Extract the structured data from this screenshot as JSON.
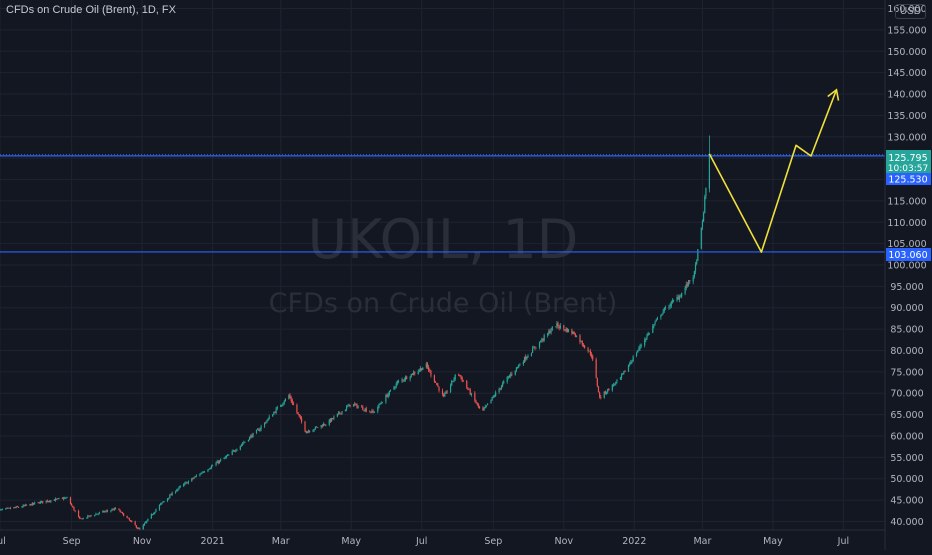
{
  "header": {
    "symbol_line": "CFDs on Crude Oil (Brent), 1D, FX",
    "currency": "USD"
  },
  "watermark": {
    "symbol": "UKOIL, 1D",
    "name": "CFDs on Crude Oil (Brent)"
  },
  "colors": {
    "background": "#131722",
    "grid": "#1f2330",
    "up": "#26a69a",
    "down": "#ef5350",
    "level_line": "#2962ff",
    "drawing": "#f0e03a",
    "current_price_badge": "#26a69a",
    "level_badge": "#2962ff"
  },
  "price_tags": {
    "current": {
      "value": "125.795",
      "countdown": "10:03:57"
    },
    "level1": {
      "value": "125.530"
    },
    "level2": {
      "value": "103.060"
    }
  },
  "chart_data": {
    "type": "candlestick",
    "symbol": "UKOIL",
    "interval": "1D",
    "y_axis": {
      "range": [
        38,
        162
      ],
      "ticks": [
        40,
        45,
        50,
        55,
        60,
        65,
        70,
        75,
        80,
        85,
        90,
        95,
        100,
        105,
        110,
        115,
        120,
        125,
        130,
        135,
        140,
        145,
        150,
        155,
        160
      ],
      "tick_labels": [
        "40.000",
        "45.000",
        "50.000",
        "55.000",
        "60.000",
        "65.000",
        "70.000",
        "75.000",
        "80.000",
        "85.000",
        "90.000",
        "95.000",
        "100.000",
        "105.000",
        "110.000",
        "115.000",
        "120.000",
        "125.000",
        "130.000",
        "135.000",
        "140.000",
        "145.000",
        "150.000",
        "155.000",
        "160.000"
      ]
    },
    "x_axis": {
      "range": [
        "2020-07-01",
        "2022-08-06"
      ],
      "ticks": [
        {
          "date": "2020-07-01",
          "label": "Jul"
        },
        {
          "date": "2020-09-01",
          "label": "Sep"
        },
        {
          "date": "2020-11-01",
          "label": "Nov"
        },
        {
          "date": "2021-01-01",
          "label": "2021"
        },
        {
          "date": "2021-03-01",
          "label": "Mar"
        },
        {
          "date": "2021-05-01",
          "label": "May"
        },
        {
          "date": "2021-07-01",
          "label": "Jul"
        },
        {
          "date": "2021-09-01",
          "label": "Sep"
        },
        {
          "date": "2021-11-01",
          "label": "Nov"
        },
        {
          "date": "2022-01-01",
          "label": "2022"
        },
        {
          "date": "2022-03-01",
          "label": "Mar"
        },
        {
          "date": "2022-05-01",
          "label": "May"
        },
        {
          "date": "2022-07-01",
          "label": "Jul"
        }
      ]
    },
    "price_path": [
      [
        "2020-06-28",
        42.5
      ],
      [
        "2020-07-20",
        43.5
      ],
      [
        "2020-08-10",
        44.8
      ],
      [
        "2020-08-28",
        45.5
      ],
      [
        "2020-09-08",
        40.5
      ],
      [
        "2020-09-25",
        42.0
      ],
      [
        "2020-10-10",
        43.0
      ],
      [
        "2020-10-30",
        38.0
      ],
      [
        "2020-11-15",
        43.5
      ],
      [
        "2020-12-01",
        47.5
      ],
      [
        "2020-12-20",
        51.0
      ],
      [
        "2021-01-15",
        55.5
      ],
      [
        "2021-02-10",
        61.5
      ],
      [
        "2021-03-08",
        69.5
      ],
      [
        "2021-03-23",
        61.0
      ],
      [
        "2021-04-10",
        63.0
      ],
      [
        "2021-05-01",
        67.5
      ],
      [
        "2021-05-20",
        65.5
      ],
      [
        "2021-06-10",
        72.5
      ],
      [
        "2021-07-05",
        76.5
      ],
      [
        "2021-07-20",
        69.0
      ],
      [
        "2021-08-01",
        75.0
      ],
      [
        "2021-08-22",
        65.5
      ],
      [
        "2021-09-10",
        72.5
      ],
      [
        "2021-10-01",
        79.0
      ],
      [
        "2021-10-25",
        86.0
      ],
      [
        "2021-11-10",
        84.0
      ],
      [
        "2021-11-25",
        79.0
      ],
      [
        "2021-12-02",
        69.0
      ],
      [
        "2021-12-20",
        73.5
      ],
      [
        "2022-01-05",
        80.5
      ],
      [
        "2022-01-25",
        89.0
      ],
      [
        "2022-02-10",
        93.0
      ],
      [
        "2022-02-22",
        98.0
      ],
      [
        "2022-03-01",
        110.0
      ],
      [
        "2022-03-04",
        118.0
      ],
      [
        "2022-03-07",
        125.8
      ]
    ],
    "horizontal_lines": [
      125.53,
      103.06
    ],
    "drawing_path": [
      [
        "2022-03-07",
        126.0
      ],
      [
        "2022-04-21",
        103.0
      ],
      [
        "2022-05-21",
        128.0
      ],
      [
        "2022-06-03",
        125.5
      ],
      [
        "2022-06-25",
        141.0
      ]
    ]
  }
}
